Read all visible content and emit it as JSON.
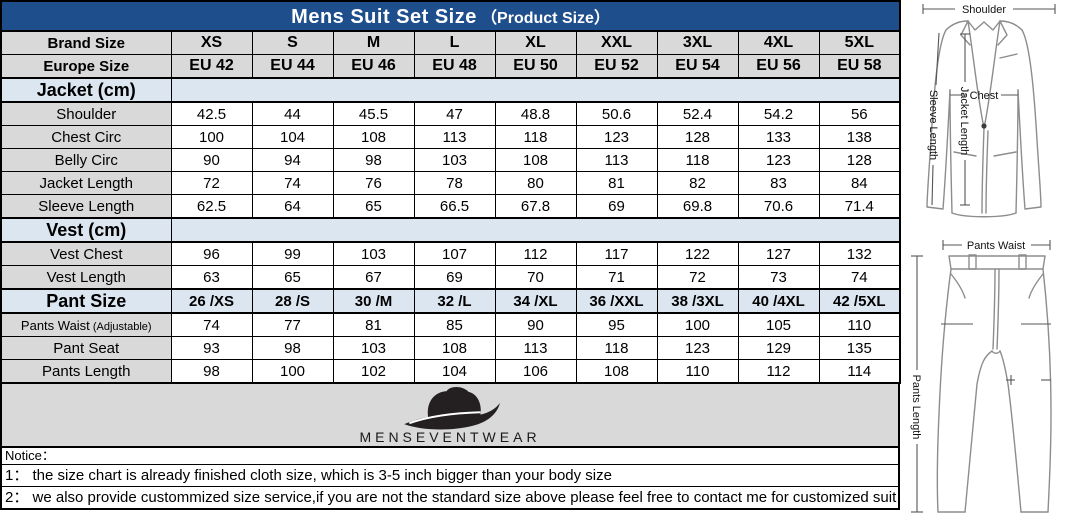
{
  "chart_data": {
    "type": "table",
    "title": "Mens Suit Set Size",
    "subtitle": "（Product Size）",
    "columns": 9,
    "rows": [
      {
        "kind": "size",
        "label": "Brand Size",
        "values": [
          "XS",
          "S",
          "M",
          "L",
          "XL",
          "XXL",
          "3XL",
          "4XL",
          "5XL"
        ]
      },
      {
        "kind": "size",
        "label": "Europe Size",
        "values": [
          "EU 42",
          "EU 44",
          "EU 46",
          "EU 48",
          "EU 50",
          "EU 52",
          "EU 54",
          "EU 56",
          "EU 58"
        ]
      },
      {
        "kind": "section",
        "label": "Jacket (cm)"
      },
      {
        "kind": "data",
        "label": "Shoulder",
        "values": [
          "42.5",
          "44",
          "45.5",
          "47",
          "48.8",
          "50.6",
          "52.4",
          "54.2",
          "56"
        ]
      },
      {
        "kind": "data",
        "label": "Chest Circ",
        "values": [
          "100",
          "104",
          "108",
          "113",
          "118",
          "123",
          "128",
          "133",
          "138"
        ]
      },
      {
        "kind": "data",
        "label": "Belly Circ",
        "values": [
          "90",
          "94",
          "98",
          "103",
          "108",
          "113",
          "118",
          "123",
          "128"
        ]
      },
      {
        "kind": "data",
        "label": "Jacket Length",
        "values": [
          "72",
          "74",
          "76",
          "78",
          "80",
          "81",
          "82",
          "83",
          "84"
        ]
      },
      {
        "kind": "data",
        "label": "Sleeve Length",
        "values": [
          "62.5",
          "64",
          "65",
          "66.5",
          "67.8",
          "69",
          "69.8",
          "70.6",
          "71.4"
        ]
      },
      {
        "kind": "section",
        "label": "Vest (cm)"
      },
      {
        "kind": "data",
        "label": "Vest Chest",
        "values": [
          "96",
          "99",
          "103",
          "107",
          "112",
          "117",
          "122",
          "127",
          "132"
        ]
      },
      {
        "kind": "data",
        "label": "Vest Length",
        "values": [
          "63",
          "65",
          "67",
          "69",
          "70",
          "71",
          "72",
          "73",
          "74"
        ]
      },
      {
        "kind": "sizeblue",
        "label": "Pant Size",
        "values": [
          "26 /XS",
          "28 /S",
          "30 /M",
          "32 /L",
          "34 /XL",
          "36 /XXL",
          "38 /3XL",
          "40 /4XL",
          "42 /5XL"
        ]
      },
      {
        "kind": "data",
        "label": "Pants Waist",
        "label_small": "(Adjustable)",
        "values": [
          "74",
          "77",
          "81",
          "85",
          "90",
          "95",
          "100",
          "105",
          "110"
        ]
      },
      {
        "kind": "data",
        "label": "Pant Seat",
        "values": [
          "93",
          "98",
          "103",
          "108",
          "113",
          "118",
          "123",
          "129",
          "135"
        ]
      },
      {
        "kind": "data",
        "label": "Pants Length",
        "values": [
          "98",
          "100",
          "102",
          "104",
          "106",
          "108",
          "110",
          "112",
          "114"
        ]
      }
    ]
  },
  "logo": {
    "brand": "MENSEVENTWEAR",
    "icon": "fedora-hat-icon"
  },
  "notices": {
    "heading": "Notice：",
    "items": [
      "1：  the size chart is already finished cloth size, which is 3-5 inch bigger than your body size",
      "2：  we also provide custommized size service,if you are not the standard size above please feel free to contact me for customized suit"
    ]
  },
  "diagrams": {
    "jacket": {
      "shoulder": "Shoulder",
      "chest": "Chest",
      "jacket_length": "Jacket Length",
      "sleeve_length": "Sleeve Length"
    },
    "pants": {
      "waist": "Pants Waist",
      "length": "Pants Length"
    }
  },
  "colors": {
    "header_bg": "#1F4E8C",
    "section_bg": "#DCE6F1",
    "label_bg": "#D9D9D9",
    "logo_bg": "#D9D9D9",
    "border": "#000000"
  }
}
